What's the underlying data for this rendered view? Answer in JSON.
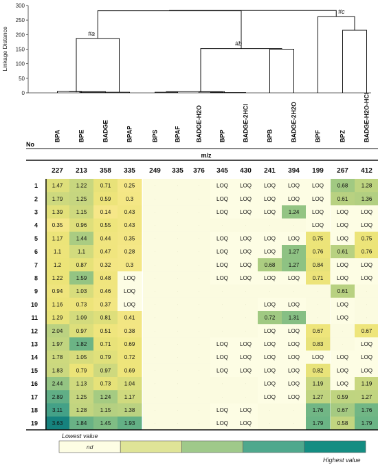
{
  "chart_data": {
    "type": "heatmap",
    "dendrogram": {
      "ylabel": "Linkage Distance",
      "yticks": [
        0,
        50,
        100,
        150,
        200,
        250,
        300
      ],
      "ylim": [
        0,
        300
      ],
      "cluster_labels": [
        "#a",
        "#b",
        "#c"
      ]
    },
    "compounds": [
      "BPA",
      "BPE",
      "BADGE",
      "BPAP",
      "BPS",
      "BPAF",
      "BADGE-H2O",
      "BPP",
      "BADGE-2HCl",
      "BPB",
      "BADGE-2H2O",
      "BPF",
      "BPZ",
      "BADGE-H2O-HCl"
    ],
    "row_header": "No",
    "mz_label": "m/z",
    "mz_values": [
      "227",
      "213",
      "358",
      "335",
      "249",
      "335",
      "376",
      "345",
      "430",
      "241",
      "394",
      "199",
      "267",
      "412"
    ],
    "rows": [
      {
        "no": "1",
        "cells": [
          "1.47",
          "1.22",
          "0.71",
          "0.25",
          "",
          "",
          "",
          "LOQ",
          "LOQ",
          "LOQ",
          "LOQ",
          "LOQ",
          "0.68",
          "1.28"
        ]
      },
      {
        "no": "2",
        "cells": [
          "1.79",
          "1.25",
          "0.59",
          "0.3",
          "",
          "",
          "",
          "LOQ",
          "LOQ",
          "LOQ",
          "LOQ",
          "LOQ",
          "0.61",
          "1.36"
        ]
      },
      {
        "no": "3",
        "cells": [
          "1.39",
          "1.15",
          "0.14",
          "0.43",
          "",
          "",
          "",
          "LOQ",
          "LOQ",
          "LOQ",
          "1.24",
          "LOQ",
          "LOQ",
          "LOQ"
        ]
      },
      {
        "no": "4",
        "cells": [
          "0.35",
          "0.96",
          "0.55",
          "0.43",
          "",
          "",
          "",
          "",
          "",
          "",
          "",
          "LOQ",
          "LOQ",
          "LOQ"
        ]
      },
      {
        "no": "5",
        "cells": [
          "1.17",
          "1.44",
          "0.44",
          "0.35",
          "",
          "",
          "",
          "LOQ",
          "LOQ",
          "LOQ",
          "LOQ",
          "0.75",
          "LOQ",
          "0.75"
        ]
      },
      {
        "no": "6",
        "cells": [
          "1.1",
          "1.1",
          "0.47",
          "0.28",
          "",
          "",
          "",
          "LOQ",
          "LOQ",
          "LOQ",
          "1.27",
          "0.76",
          "0.61",
          "0.76"
        ]
      },
      {
        "no": "7",
        "cells": [
          "1.2",
          "0.87",
          "0.32",
          "0.3",
          "",
          "",
          "",
          "LOQ",
          "LOQ",
          "0.68",
          "1.27",
          "0.84",
          "LOQ",
          "LOQ"
        ]
      },
      {
        "no": "8",
        "cells": [
          "1.22",
          "1.59",
          "0.48",
          "LOQ",
          "",
          "",
          "",
          "LOQ",
          "LOQ",
          "LOQ",
          "LOQ",
          "0.71",
          "LOQ",
          "LOQ"
        ]
      },
      {
        "no": "9",
        "cells": [
          "0.94",
          "1.03",
          "0.46",
          "LOQ",
          "",
          "",
          "",
          "",
          "",
          "",
          "",
          "",
          "0.61",
          ""
        ]
      },
      {
        "no": "10",
        "cells": [
          "1.16",
          "0.73",
          "0.37",
          "LOQ",
          "",
          "",
          "",
          "",
          "",
          "LOQ",
          "LOQ",
          "",
          "LOQ",
          ""
        ]
      },
      {
        "no": "11",
        "cells": [
          "1.29",
          "1.09",
          "0.81",
          "0.41",
          "",
          "",
          "",
          "",
          "",
          "0.72",
          "1.31",
          "",
          "LOQ",
          ""
        ]
      },
      {
        "no": "12",
        "cells": [
          "2.04",
          "0.97",
          "0.51",
          "0.38",
          "",
          "",
          "",
          "",
          "",
          "LOQ",
          "LOQ",
          "0.67",
          "",
          "0.67"
        ]
      },
      {
        "no": "13",
        "cells": [
          "1.97",
          "1.82",
          "0.71",
          "0.69",
          "",
          "",
          "",
          "LOQ",
          "LOQ",
          "LOQ",
          "LOQ",
          "0.83",
          "",
          "LOQ"
        ]
      },
      {
        "no": "14",
        "cells": [
          "1.78",
          "1.05",
          "0.79",
          "0.72",
          "",
          "",
          "",
          "LOQ",
          "LOQ",
          "LOQ",
          "LOQ",
          "LOQ",
          "LOQ",
          "LOQ"
        ]
      },
      {
        "no": "15",
        "cells": [
          "1.83",
          "0.79",
          "0.97",
          "0.69",
          "",
          "",
          "",
          "LOQ",
          "LOQ",
          "LOQ",
          "LOQ",
          "0.82",
          "LOQ",
          "LOQ"
        ]
      },
      {
        "no": "16",
        "cells": [
          "2.44",
          "1.13",
          "0.73",
          "1.04",
          "",
          "",
          "",
          "",
          "",
          "LOQ",
          "LOQ",
          "1.19",
          "LOQ",
          "1.19"
        ]
      },
      {
        "no": "17",
        "cells": [
          "2.89",
          "1.25",
          "1.24",
          "1.17",
          "",
          "",
          "",
          "",
          "",
          "LOQ",
          "LOQ",
          "1.27",
          "0.59",
          "1.27"
        ]
      },
      {
        "no": "18",
        "cells": [
          "3.11",
          "1.28",
          "1.15",
          "1.38",
          "",
          "",
          "",
          "LOQ",
          "LOQ",
          "",
          "",
          "1.76",
          "0.67",
          "1.76"
        ]
      },
      {
        "no": "19",
        "cells": [
          "3.63",
          "1.84",
          "1.45",
          "1.93",
          "",
          "",
          "",
          "LOQ",
          "LOQ",
          "",
          "",
          "1.79",
          "0.58",
          "1.79"
        ]
      }
    ],
    "legend": {
      "low_label": "Lowest value",
      "high_label": "Highest value",
      "nd_label": "nd",
      "scale_colors": [
        "#fdfde4",
        "#dfe497",
        "#9fc98a",
        "#4fa88d",
        "#148d82"
      ]
    },
    "colors": {
      "nd": "#fbfbe0",
      "loq": "#fdfde4",
      "low": "#f6e27c",
      "mid": "#bfd387",
      "high": "#168e83"
    }
  }
}
